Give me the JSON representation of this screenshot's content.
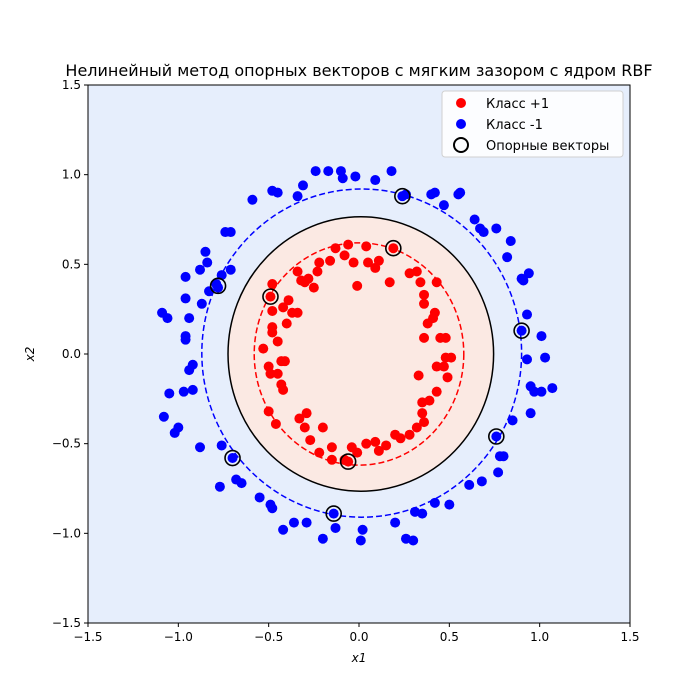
{
  "chart_data": {
    "type": "scatter",
    "title": "Нелинейный метод опорных векторов с мягким зазором с ядром RBF",
    "xlabel": "x1",
    "ylabel": "x2",
    "xlim": [
      -1.5,
      1.5
    ],
    "ylim": [
      -1.5,
      1.5
    ],
    "xticks": [
      "−1.5",
      "−1.0",
      "−0.5",
      "0.0",
      "0.5",
      "1.0",
      "1.5"
    ],
    "yticks": [
      "−1.5",
      "−1.0",
      "−0.5",
      "0.0",
      "0.5",
      "1.0",
      "1.5"
    ],
    "xtick_values": [
      -1.5,
      -1.0,
      -0.5,
      0.0,
      0.5,
      1.0,
      1.5
    ],
    "ytick_values": [
      -1.5,
      -1.0,
      -0.5,
      0.0,
      0.5,
      1.0,
      1.5
    ],
    "grid": false,
    "legend": {
      "placement": "top-right",
      "entries": [
        "Класс +1",
        "Класс -1",
        "Опорные векторы"
      ]
    },
    "colors": {
      "class_pos": "#ff0000",
      "class_neg": "#0000ff",
      "region_pos": "#fbe9e3",
      "region_neg": "#e6eefc",
      "boundary": "#000000"
    },
    "contours": [
      {
        "name": "decision-boundary",
        "level": 0,
        "center": [
          0.01,
          0.0
        ],
        "radii": [
          0.735,
          0.765
        ],
        "style": "solid",
        "color": "#000000"
      },
      {
        "name": "margin-positive",
        "level": 1,
        "center": [
          0.0,
          0.0
        ],
        "radii": [
          0.58,
          0.62
        ],
        "style": "dashed",
        "color": "#ff0000"
      },
      {
        "name": "margin-negative",
        "level": -1,
        "center": [
          0.015,
          0.005
        ],
        "radii": [
          0.885,
          0.915
        ],
        "style": "dashed",
        "color": "#0000ff"
      }
    ],
    "series": [
      {
        "name": "Класс +1",
        "color": "#ff0000",
        "points": [
          [
            -0.13,
            0.59
          ],
          [
            -0.06,
            0.61
          ],
          [
            0.04,
            0.6
          ],
          [
            0.19,
            0.59
          ],
          [
            -0.22,
            0.51
          ],
          [
            -0.16,
            0.52
          ],
          [
            -0.08,
            0.55
          ],
          [
            -0.23,
            0.46
          ],
          [
            -0.28,
            0.42
          ],
          [
            -0.03,
            0.51
          ],
          [
            0.11,
            0.52
          ],
          [
            0.09,
            0.48
          ],
          [
            0.05,
            0.51
          ],
          [
            0.17,
            0.4
          ],
          [
            0.28,
            0.45
          ],
          [
            0.32,
            0.46
          ],
          [
            0.34,
            0.4
          ],
          [
            0.43,
            0.4
          ],
          [
            0.36,
            0.33
          ],
          [
            0.36,
            0.28
          ],
          [
            0.42,
            0.23
          ],
          [
            0.41,
            0.2
          ],
          [
            0.38,
            0.17
          ],
          [
            0.36,
            0.09
          ],
          [
            0.45,
            0.09
          ],
          [
            0.48,
            0.09
          ],
          [
            0.48,
            -0.02
          ],
          [
            0.51,
            -0.02
          ],
          [
            0.47,
            -0.07
          ],
          [
            0.49,
            -0.13
          ],
          [
            0.43,
            -0.07
          ],
          [
            0.33,
            -0.12
          ],
          [
            0.43,
            -0.21
          ],
          [
            0.39,
            -0.26
          ],
          [
            0.35,
            -0.27
          ],
          [
            0.35,
            -0.33
          ],
          [
            0.36,
            -0.38
          ],
          [
            0.32,
            -0.41
          ],
          [
            0.28,
            -0.45
          ],
          [
            0.23,
            -0.47
          ],
          [
            0.2,
            -0.45
          ],
          [
            0.15,
            -0.51
          ],
          [
            0.11,
            -0.54
          ],
          [
            0.09,
            -0.49
          ],
          [
            0.04,
            -0.5
          ],
          [
            -0.01,
            -0.55
          ],
          [
            -0.04,
            -0.52
          ],
          [
            -0.08,
            -0.59
          ],
          [
            -0.06,
            -0.6
          ],
          [
            -0.15,
            -0.59
          ],
          [
            -0.15,
            -0.52
          ],
          [
            -0.22,
            -0.55
          ],
          [
            -0.27,
            -0.48
          ],
          [
            -0.2,
            -0.41
          ],
          [
            -0.3,
            -0.41
          ],
          [
            -0.29,
            -0.33
          ],
          [
            -0.33,
            -0.36
          ],
          [
            -0.46,
            -0.39
          ],
          [
            -0.5,
            -0.32
          ],
          [
            -0.42,
            -0.2
          ],
          [
            -0.43,
            -0.17
          ],
          [
            -0.45,
            -0.11
          ],
          [
            -0.43,
            -0.04
          ],
          [
            -0.41,
            -0.04
          ],
          [
            -0.49,
            -0.11
          ],
          [
            -0.5,
            -0.07
          ],
          [
            -0.53,
            0.03
          ],
          [
            -0.45,
            0.07
          ],
          [
            -0.48,
            0.12
          ],
          [
            -0.48,
            0.15
          ],
          [
            -0.4,
            0.17
          ],
          [
            -0.37,
            0.23
          ],
          [
            -0.39,
            0.3
          ],
          [
            -0.34,
            0.23
          ],
          [
            -0.42,
            0.26
          ],
          [
            -0.49,
            0.32
          ],
          [
            -0.48,
            0.39
          ],
          [
            -0.48,
            0.24
          ],
          [
            -0.3,
            0.4
          ],
          [
            -0.25,
            0.37
          ],
          [
            -0.01,
            0.38
          ],
          [
            -0.32,
            0.41
          ],
          [
            -0.34,
            0.46
          ]
        ]
      },
      {
        "name": "Класс -1",
        "color": "#0000ff",
        "points": [
          [
            -0.24,
            1.02
          ],
          [
            -0.17,
            1.02
          ],
          [
            -0.1,
            1.02
          ],
          [
            -0.09,
            0.98
          ],
          [
            -0.02,
            0.99
          ],
          [
            0.09,
            0.97
          ],
          [
            0.18,
            1.02
          ],
          [
            0.24,
            0.88
          ],
          [
            0.26,
            0.89
          ],
          [
            0.4,
            0.89
          ],
          [
            0.42,
            0.9
          ],
          [
            0.47,
            0.83
          ],
          [
            0.55,
            0.89
          ],
          [
            0.56,
            0.9
          ],
          [
            0.64,
            0.75
          ],
          [
            0.67,
            0.7
          ],
          [
            0.69,
            0.68
          ],
          [
            0.76,
            0.7
          ],
          [
            0.84,
            0.63
          ],
          [
            0.82,
            0.54
          ],
          [
            0.9,
            0.42
          ],
          [
            0.94,
            0.45
          ],
          [
            0.91,
            0.41
          ],
          [
            0.93,
            0.22
          ],
          [
            0.9,
            0.13
          ],
          [
            1.01,
            0.1
          ],
          [
            0.93,
            -0.03
          ],
          [
            1.03,
            -0.02
          ],
          [
            1.07,
            -0.19
          ],
          [
            0.97,
            -0.21
          ],
          [
            0.95,
            -0.18
          ],
          [
            1.01,
            -0.21
          ],
          [
            0.95,
            -0.33
          ],
          [
            0.85,
            -0.37
          ],
          [
            0.76,
            -0.46
          ],
          [
            0.78,
            -0.57
          ],
          [
            0.8,
            -0.57
          ],
          [
            0.77,
            -0.66
          ],
          [
            0.68,
            -0.71
          ],
          [
            0.61,
            -0.73
          ],
          [
            0.5,
            -0.84
          ],
          [
            0.42,
            -0.83
          ],
          [
            0.35,
            -0.89
          ],
          [
            0.31,
            -0.88
          ],
          [
            0.26,
            -1.03
          ],
          [
            0.3,
            -1.04
          ],
          [
            0.2,
            -0.94
          ],
          [
            0.02,
            -0.98
          ],
          [
            0.01,
            -1.04
          ],
          [
            -0.13,
            -0.97
          ],
          [
            -0.14,
            -0.89
          ],
          [
            -0.2,
            -1.03
          ],
          [
            -0.29,
            -0.94
          ],
          [
            -0.36,
            -0.94
          ],
          [
            -0.42,
            -0.98
          ],
          [
            -0.48,
            -0.86
          ],
          [
            -0.49,
            -0.84
          ],
          [
            -0.55,
            -0.8
          ],
          [
            -0.65,
            -0.72
          ],
          [
            -0.68,
            -0.7
          ],
          [
            -0.7,
            -0.58
          ],
          [
            -0.76,
            -0.51
          ],
          [
            -0.77,
            -0.74
          ],
          [
            -0.88,
            -0.52
          ],
          [
            -1.0,
            -0.41
          ],
          [
            -1.02,
            -0.44
          ],
          [
            -1.08,
            -0.35
          ],
          [
            -0.92,
            -0.2
          ],
          [
            -0.97,
            -0.21
          ],
          [
            -1.05,
            -0.22
          ],
          [
            -0.94,
            -0.09
          ],
          [
            -0.92,
            -0.06
          ],
          [
            -0.96,
            0.08
          ],
          [
            -0.96,
            0.1
          ],
          [
            -0.94,
            0.2
          ],
          [
            -0.87,
            0.28
          ],
          [
            -0.83,
            0.35
          ],
          [
            -0.78,
            0.37
          ],
          [
            -0.79,
            0.39
          ],
          [
            -0.76,
            0.44
          ],
          [
            -0.71,
            0.47
          ],
          [
            -0.85,
            0.57
          ],
          [
            -0.88,
            0.47
          ],
          [
            -0.96,
            0.43
          ],
          [
            -1.09,
            0.23
          ],
          [
            -1.06,
            0.2
          ],
          [
            -0.96,
            0.31
          ],
          [
            -0.84,
            0.51
          ],
          [
            -0.74,
            0.68
          ],
          [
            -0.59,
            0.86
          ],
          [
            -0.48,
            0.91
          ],
          [
            -0.45,
            0.9
          ],
          [
            -0.34,
            0.88
          ],
          [
            -0.31,
            0.94
          ],
          [
            -0.71,
            0.68
          ]
        ]
      }
    ],
    "support_vectors": [
      [
        0.19,
        0.59
      ],
      [
        -0.49,
        0.32
      ],
      [
        -0.06,
        -0.6
      ],
      [
        0.24,
        0.88
      ],
      [
        0.9,
        0.13
      ],
      [
        0.76,
        -0.46
      ],
      [
        -0.14,
        -0.89
      ],
      [
        -0.7,
        -0.58
      ],
      [
        -0.78,
        0.38
      ]
    ]
  }
}
